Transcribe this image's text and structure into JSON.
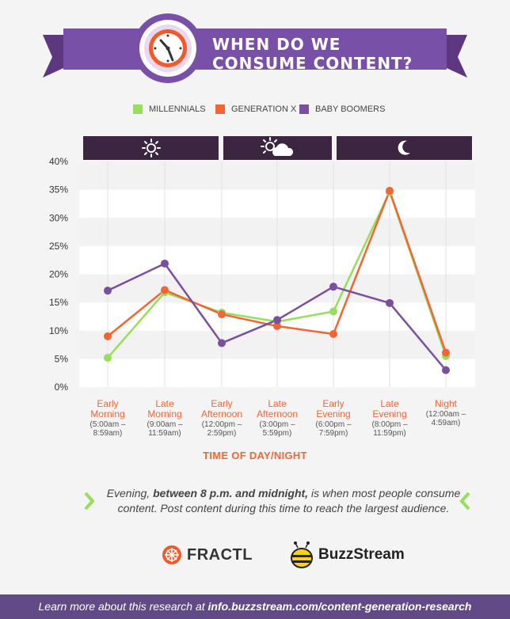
{
  "header": {
    "title": "WHEN DO WE\nCONSUME CONTENT?",
    "clock_icon": "clock-icon"
  },
  "legend": [
    {
      "label": "MILLENNIALS",
      "color": "#95df5a"
    },
    {
      "label": "GENERATION X",
      "color": "#f26535"
    },
    {
      "label": "BABY BOOMERS",
      "color": "#7a4fa0"
    }
  ],
  "periods": [
    {
      "icon": "sun-icon"
    },
    {
      "icon": "sun-cloud-icon"
    },
    {
      "icon": "moon-icon"
    }
  ],
  "chart_data": {
    "type": "line",
    "categories": [
      "Early Morning",
      "Late Morning",
      "Early Afternoon",
      "Late Afternoon",
      "Early Evening",
      "Late Evening",
      "Night"
    ],
    "category_ranges": [
      "(5:00am – 8:59am)",
      "(9:00am – 11:59am)",
      "(12:00pm – 2:59pm)",
      "(3:00pm – 5:59pm)",
      "(6:00pm – 7:59pm)",
      "(8:00pm – 11:59pm)",
      "(12:00am – 4:59am)"
    ],
    "series": [
      {
        "name": "MILLENNIALS",
        "color": "#95df5a",
        "values": [
          5.2,
          16.8,
          13.2,
          11.6,
          13.4,
          34.6,
          5.5
        ]
      },
      {
        "name": "GENERATION X",
        "color": "#f26535",
        "values": [
          9.0,
          17.2,
          12.9,
          10.8,
          9.4,
          34.8,
          6.1
        ]
      },
      {
        "name": "BABY BOOMERS",
        "color": "#7a4fa0",
        "values": [
          17.1,
          21.9,
          7.8,
          11.9,
          17.8,
          14.9,
          3.0
        ]
      }
    ],
    "yticks": [
      "0%",
      "5%",
      "10%",
      "15%",
      "20%",
      "25%",
      "30%",
      "35%",
      "40%"
    ],
    "ylim": [
      0,
      40
    ],
    "xlabel": "TIME OF DAY/NIGHT",
    "ylabel": ""
  },
  "callout": {
    "part1": "Evening, ",
    "bold": "between 8 p.m. and midnight,",
    "part2": " is when most people consume content. Post content during this time to reach the largest audience."
  },
  "logos": {
    "fractl": "FRACTL",
    "buzzstream": "BuzzStream"
  },
  "footer": {
    "prefix": "Learn more about this research at ",
    "link": "info.buzzstream.com/content-generation-research"
  }
}
